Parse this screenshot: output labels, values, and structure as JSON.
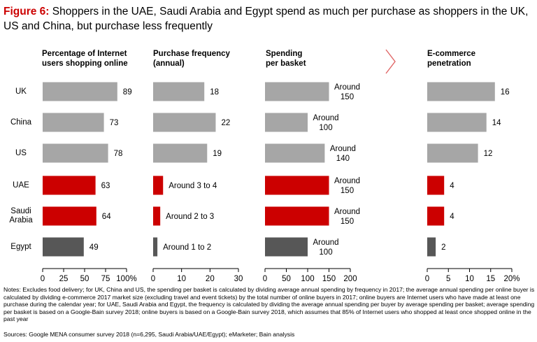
{
  "title": {
    "figure": "Figure 6:",
    "text": "Shoppers in the UAE, Saudi Arabia and Egypt spend as much per purchase as shoppers in the UK, US and China, but purchase less frequently"
  },
  "colors": {
    "gray": "#a6a6a6",
    "red": "#cc0000",
    "dark": "#575757",
    "arrow": "#e06666"
  },
  "rows": [
    {
      "label": "UK"
    },
    {
      "label": "China"
    },
    {
      "label": "US"
    },
    {
      "label": "UAE"
    },
    {
      "label": "Saudi\nArabia"
    },
    {
      "label": "Egypt"
    }
  ],
  "chart_data": [
    {
      "type": "bar",
      "title": "Percentage of Internet users shopping online",
      "title_lines": [
        "Percentage of Internet",
        "users shopping online"
      ],
      "categories": [
        "UK",
        "China",
        "US",
        "UAE",
        "Saudi Arabia",
        "Egypt"
      ],
      "values": [
        89,
        73,
        78,
        63,
        64,
        49
      ],
      "labels": [
        "89",
        "73",
        "78",
        "63",
        "64",
        "49"
      ],
      "xlim": [
        0,
        100
      ],
      "ticks": [
        0,
        25,
        50,
        75,
        100
      ],
      "tick_labels": [
        "0",
        "25",
        "50",
        "75",
        "100%"
      ]
    },
    {
      "type": "bar",
      "title": "Purchase frequency (annual)",
      "title_lines": [
        "Purchase frequency",
        "(annual)"
      ],
      "categories": [
        "UK",
        "China",
        "US",
        "UAE",
        "Saudi Arabia",
        "Egypt"
      ],
      "values": [
        18,
        22,
        19,
        3.5,
        2.5,
        1.5
      ],
      "labels": [
        "18",
        "22",
        "19",
        "Around 3 to 4",
        "Around 2 to 3",
        "Around 1 to 2"
      ],
      "xlim": [
        0,
        30
      ],
      "ticks": [
        0,
        10,
        20,
        30
      ],
      "tick_labels": [
        "0",
        "10",
        "20",
        "30"
      ]
    },
    {
      "type": "bar",
      "title": "Spending per basket",
      "title_lines": [
        "Spending",
        "per basket"
      ],
      "categories": [
        "UK",
        "China",
        "US",
        "UAE",
        "Saudi Arabia",
        "Egypt"
      ],
      "values": [
        150,
        100,
        140,
        150,
        150,
        100
      ],
      "labels": [
        "Around\n150",
        "Around\n100",
        "Around\n140",
        "Around\n150",
        "Around\n150",
        "Around\n100"
      ],
      "xlim": [
        0,
        200
      ],
      "ticks": [
        0,
        50,
        100,
        150,
        200
      ],
      "tick_labels": [
        "0",
        "50",
        "100",
        "150",
        "200"
      ]
    },
    {
      "type": "bar",
      "title": "E-commerce penetration",
      "title_lines": [
        "E-commerce",
        "penetration"
      ],
      "categories": [
        "UK",
        "China",
        "US",
        "UAE",
        "Saudi Arabia",
        "Egypt"
      ],
      "values": [
        16,
        14,
        12,
        4,
        4,
        2
      ],
      "labels": [
        "16",
        "14",
        "12",
        "4",
        "4",
        "2"
      ],
      "xlim": [
        0,
        20
      ],
      "ticks": [
        0,
        5,
        10,
        15,
        20
      ],
      "tick_labels": [
        "0",
        "5",
        "10",
        "15",
        "20%"
      ]
    }
  ],
  "notes": "Notes: Excludes food delivery; for UK, China and US, the spending per basket is calculated by dividing average annual spending by frequency in 2017; the average annual spending per online buyer is calculated by dividing e-commerce 2017 market size (excluding travel and event tickets) by the total number of online buyers in 2017; online buyers are Internet users who have made at least one purchase during the calendar year; for UAE, Saudi Arabia and Egypt, the frequency is calculated by dividing the average annual spending per buyer by average spending per basket; average spending per basket is based on a Google-Bain survey 2018; online buyers is based on a Google-Bain survey 2018, which assumes that 85% of Internet users who shopped at least once shopped online in the past year",
  "sources": "Sources: Google MENA consumer survey 2018 (n=6,295, Saudi Arabia/UAE/Egypt); eMarketer; Bain analysis"
}
